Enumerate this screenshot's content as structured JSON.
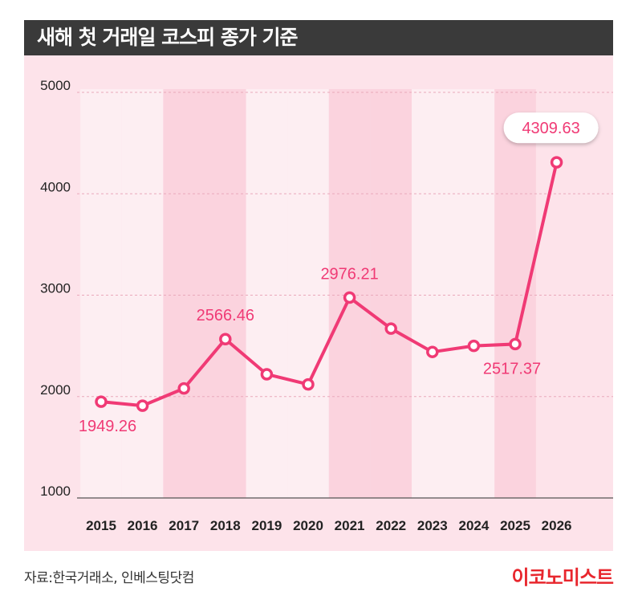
{
  "header": {
    "title": "새해 첫 거래일 코스피 종가 기준"
  },
  "chart_data": {
    "type": "line",
    "title": "새해 첫 거래일 코스피 종가 기준",
    "categories": [
      "2015",
      "2016",
      "2017",
      "2018",
      "2019",
      "2020",
      "2021",
      "2022",
      "2023",
      "2024",
      "2025",
      "2026"
    ],
    "series": [
      {
        "values": [
          1949.26,
          1910,
          2080,
          2566.46,
          2220,
          2120,
          2976.21,
          2670,
          2440,
          2500,
          2517.37,
          4309.63
        ]
      }
    ],
    "data_labels": [
      {
        "index": 0,
        "text": "1949.26",
        "position": "below"
      },
      {
        "index": 3,
        "text": "2566.46",
        "position": "above"
      },
      {
        "index": 6,
        "text": "2976.21",
        "position": "above"
      },
      {
        "index": 10,
        "text": "2517.37",
        "position": "below"
      },
      {
        "index": 11,
        "text": "4309.63",
        "position": "callout"
      }
    ],
    "y_ticks": [
      "1000",
      "2000",
      "3000",
      "4000",
      "5000"
    ],
    "ylim": [
      1000,
      5000
    ],
    "grid": true,
    "colors": {
      "line": "#f03a75",
      "label": "#f03a75",
      "band_light": "#fdeef2",
      "band_dark": "#fbd3de",
      "background": "#fde3ea"
    }
  },
  "footer": {
    "source": "자료:한국거래소, 인베스팅닷컴",
    "brand": "이코노미스트"
  }
}
